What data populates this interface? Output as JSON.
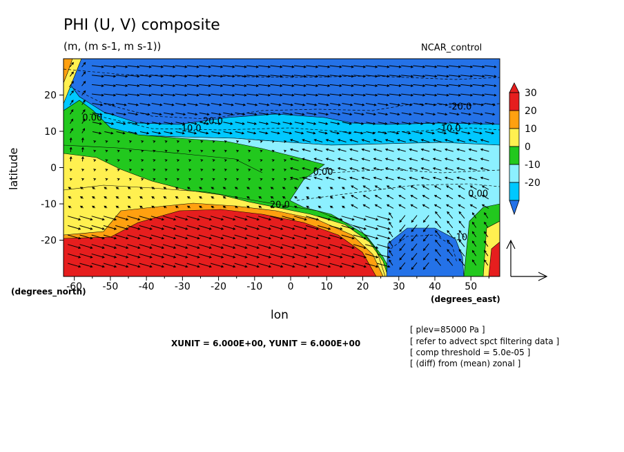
{
  "chart_data": {
    "type": "heatmap",
    "title": "PHI (U, V) composite",
    "units": "(m, (m s-1, m s-1))",
    "case_label": "NCAR_control",
    "xlabel": "lon",
    "ylabel": "latitude",
    "x_unit_label": "(degrees_east)",
    "y_unit_label": "(degrees_north)",
    "xlim": [
      -63,
      58
    ],
    "ylim": [
      -30,
      30
    ],
    "xticks": [
      -60,
      -50,
      -40,
      -30,
      -20,
      -10,
      0,
      10,
      20,
      30,
      40,
      50
    ],
    "yticks": [
      -20,
      -10,
      0,
      10,
      20
    ],
    "colorbar": {
      "levels": [
        -30,
        -20,
        -10,
        0,
        10,
        20,
        30,
        40
      ],
      "tick_labels": [
        "30",
        "20",
        "10",
        "0",
        "-10",
        "-20"
      ],
      "colors": [
        "#2472e8",
        "#00c8ff",
        "#8cf0ff",
        "#22c81e",
        "#fff050",
        "#ffa010",
        "#e61e1e",
        "#e61e1e"
      ]
    },
    "contour_labels": [
      {
        "text": "0.00",
        "lon": -55,
        "lat": 13
      },
      {
        "text": "-10.0",
        "lon": -28,
        "lat": 10
      },
      {
        "text": "-20.0",
        "lon": -22,
        "lat": 12
      },
      {
        "text": "-20.0",
        "lon": 47,
        "lat": 16
      },
      {
        "text": "-10.0",
        "lon": 44,
        "lat": 10
      },
      {
        "text": "0.00",
        "lon": 9,
        "lat": -2
      },
      {
        "text": "0.00",
        "lon": 52,
        "lat": -8
      },
      {
        "text": "20.0",
        "lon": -3,
        "lat": -11
      },
      {
        "text": "-10",
        "lon": 47,
        "lat": -20
      }
    ],
    "regions": [
      {
        "name": "north-blue",
        "level": -25
      },
      {
        "name": "mid-lightblue",
        "level": -15
      },
      {
        "name": "east-cyan",
        "level": -5
      },
      {
        "name": "green-band",
        "level": 5
      },
      {
        "name": "yellow-band",
        "level": 15
      },
      {
        "name": "orange-band",
        "level": 25
      },
      {
        "name": "south-red",
        "level": 35
      },
      {
        "name": "southeast-trough",
        "level": -25
      }
    ],
    "vector_reference": {
      "u": 6.0,
      "v": 6.0
    }
  },
  "footer": {
    "vector_unit_text": "XUNIT = 6.000E+00, YUNIT = 6.000E+00",
    "notes": [
      "[ plev=85000 Pa ]",
      "[ refer to advect spct filtering data ]",
      "[ comp threshold = 5.0e-05 ]",
      "[ (diff) from (mean) zonal ]"
    ]
  }
}
